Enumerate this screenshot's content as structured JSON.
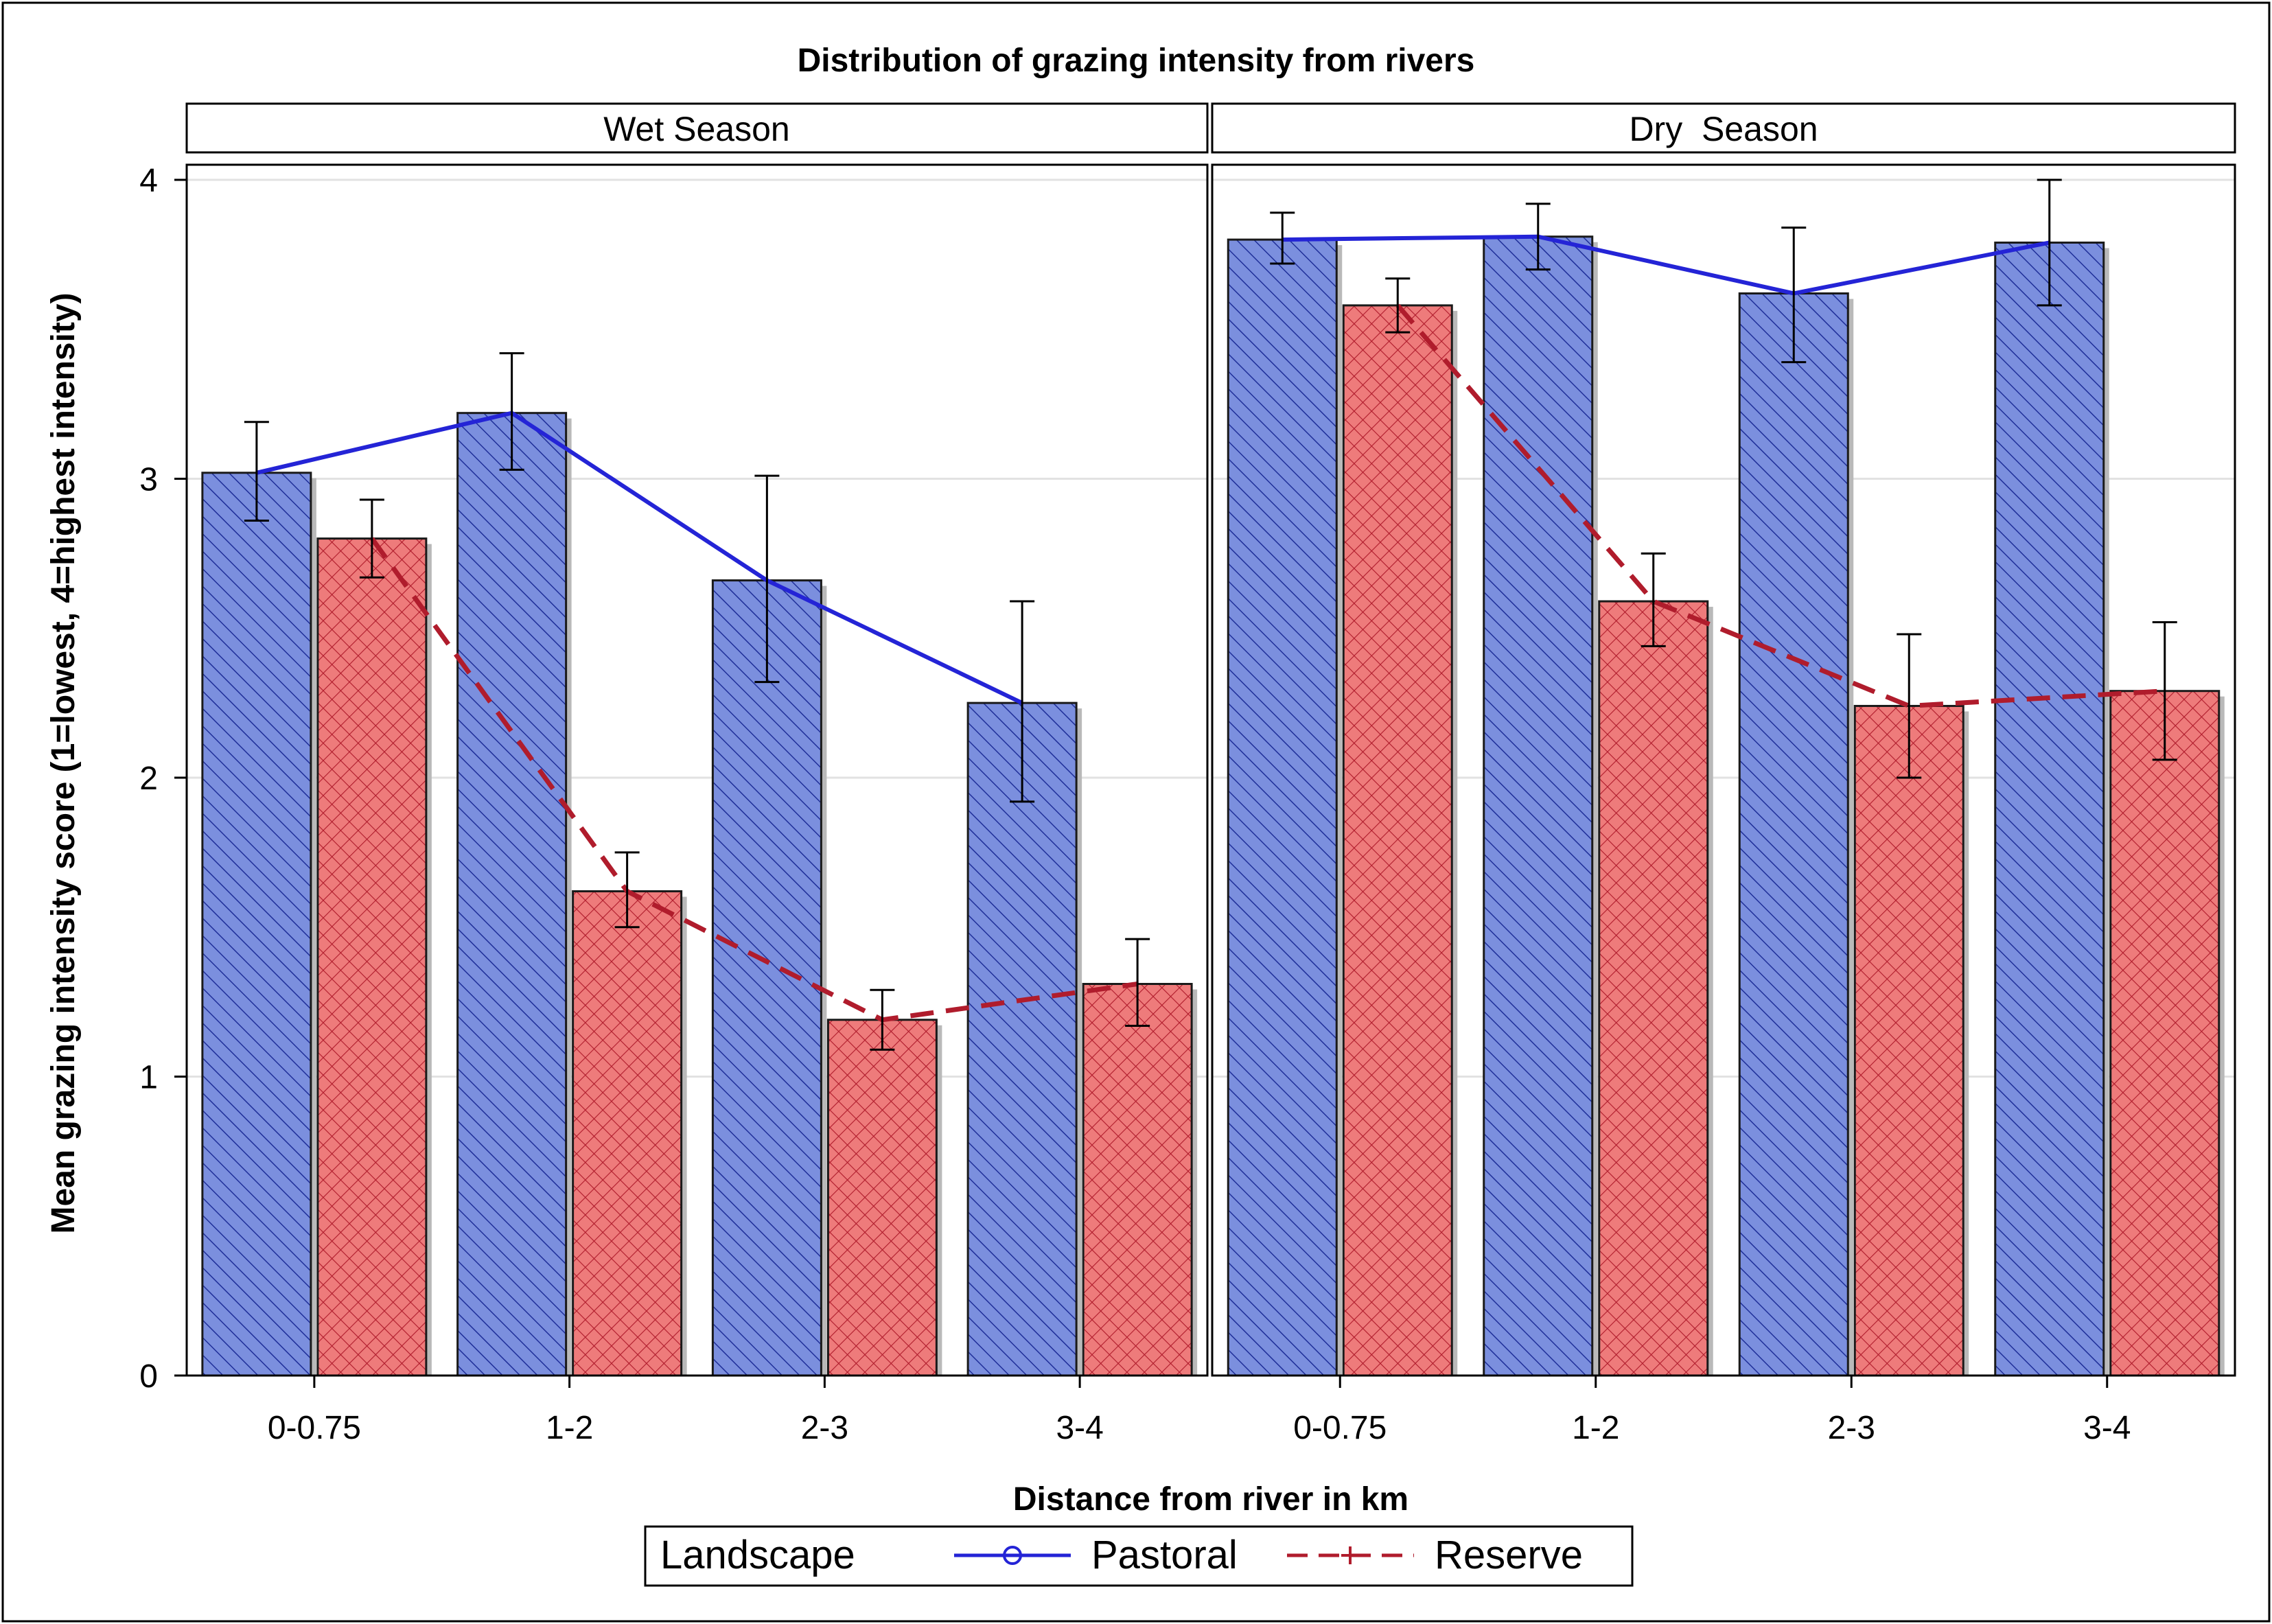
{
  "chart_data": {
    "type": "bar",
    "title": "Distribution of grazing intensity from rivers",
    "xlabel": "Distance from river in km",
    "ylabel": "Mean grazing intensity score (1=lowest, 4=highest intensity)",
    "ylim": [
      0,
      4
    ],
    "yticks": [
      "0",
      "1",
      "2",
      "3",
      "4"
    ],
    "grid": true,
    "legend": {
      "title": "Landscape",
      "placement": "bottom-center",
      "entries": [
        "Pastoral",
        "Reserve"
      ]
    },
    "colors": {
      "pastoral_fill": "#7b8fde",
      "pastoral_hatch": "#1f2f99",
      "pastoral_line": "#2424d6",
      "reserve_fill": "#ee7b7b",
      "reserve_hatch": "#b01c2c",
      "reserve_line": "#b01c2c",
      "grid": "#e2e2e2",
      "frame": "#000000"
    },
    "categories": [
      "0-0.75",
      "1-2",
      "2-3",
      "3-4"
    ],
    "panels": [
      {
        "label": "Wet Season",
        "series": [
          {
            "name": "Pastoral",
            "values": [
              3.02,
              3.22,
              2.66,
              2.25
            ],
            "err_low": [
              2.86,
              3.03,
              2.32,
              1.92
            ],
            "err_high": [
              3.19,
              3.42,
              3.01,
              2.59
            ]
          },
          {
            "name": "Reserve",
            "values": [
              2.8,
              1.62,
              1.19,
              1.31
            ],
            "err_low": [
              2.67,
              1.5,
              1.09,
              1.17
            ],
            "err_high": [
              2.93,
              1.75,
              1.29,
              1.46
            ]
          }
        ]
      },
      {
        "label": "Dry  Season",
        "series": [
          {
            "name": "Pastoral",
            "values": [
              3.8,
              3.81,
              3.62,
              3.79
            ],
            "err_low": [
              3.72,
              3.7,
              3.39,
              3.58
            ],
            "err_high": [
              3.89,
              3.92,
              3.84,
              4.0
            ]
          },
          {
            "name": "Reserve",
            "values": [
              3.58,
              2.59,
              2.24,
              2.29
            ],
            "err_low": [
              3.49,
              2.44,
              2.0,
              2.06
            ],
            "err_high": [
              3.67,
              2.75,
              2.48,
              2.52
            ]
          }
        ]
      }
    ]
  }
}
